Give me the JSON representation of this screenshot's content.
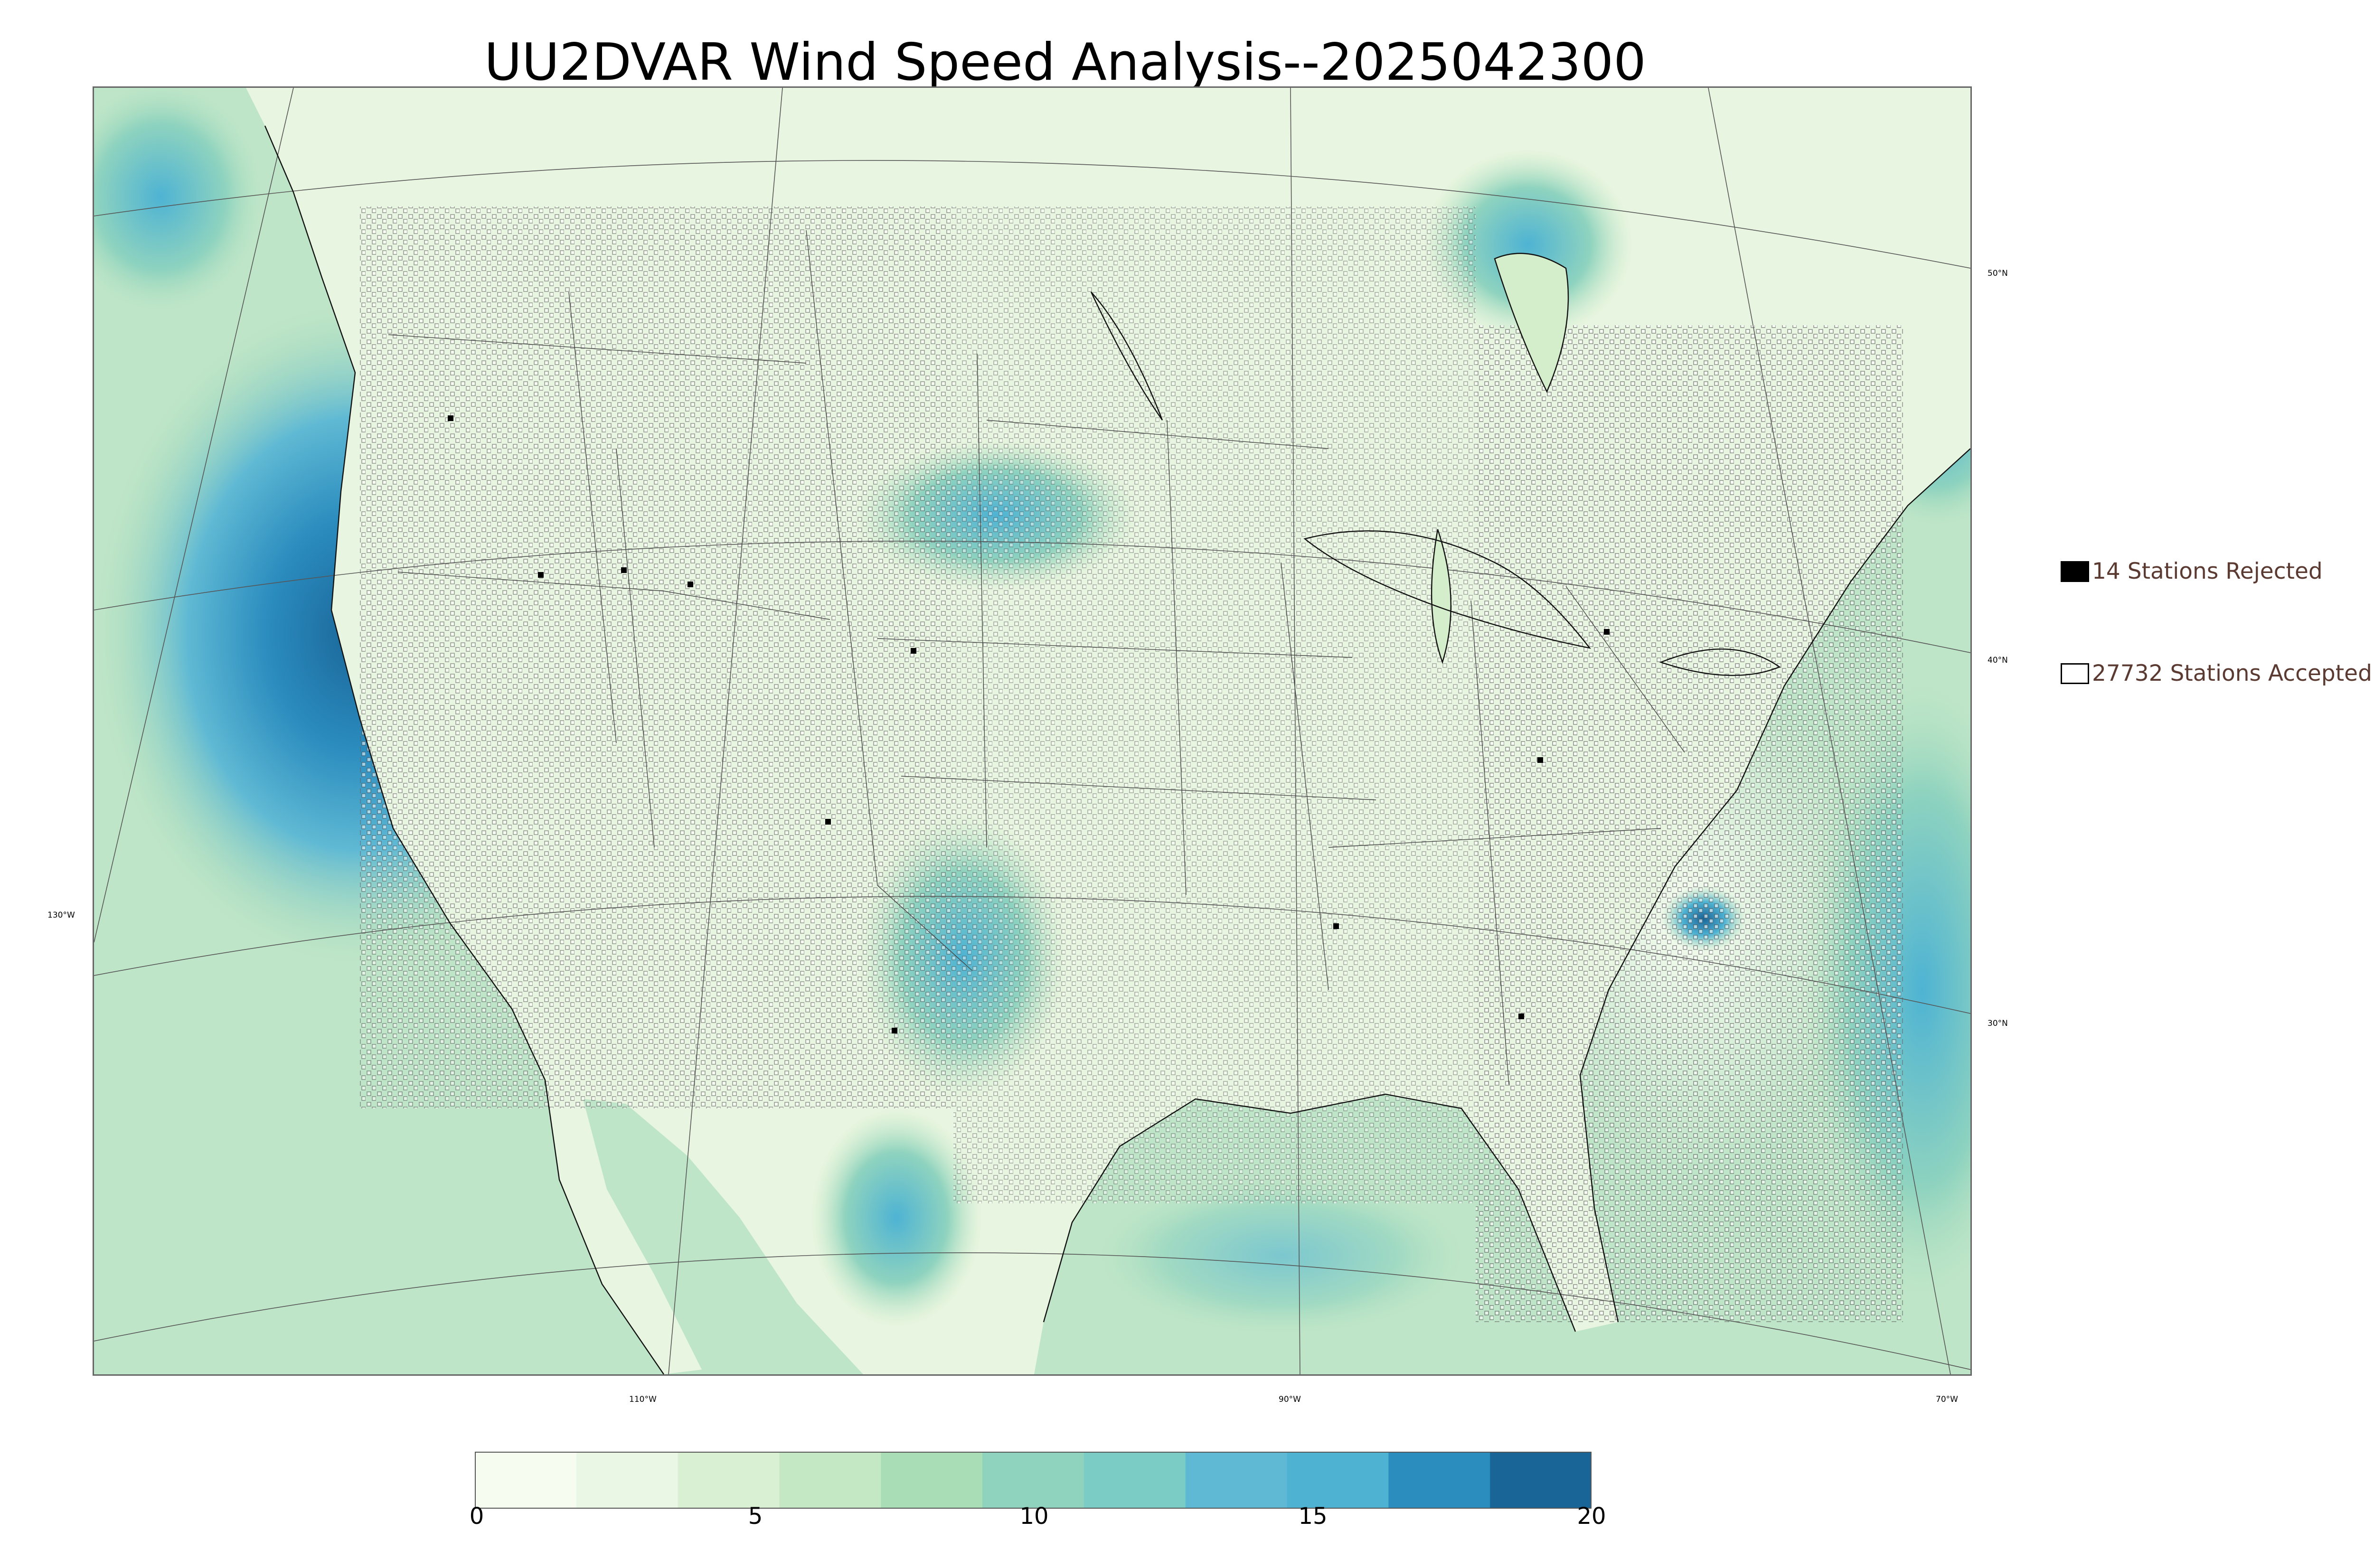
{
  "title": "UU2DVAR Wind Speed Analysis--2025042300",
  "map": {
    "lat_labels": [
      "50°N",
      "40°N",
      "30°N"
    ],
    "lon_labels": [
      "130°W",
      "110°W",
      "90°W",
      "70°W"
    ]
  },
  "legend": {
    "rejected": {
      "count_text": "14 Stations Rejected",
      "swatch_color": "#000000"
    },
    "accepted": {
      "count_text": "27732 Stations Accepted",
      "swatch_color": "#ffffff"
    }
  },
  "colorbar": {
    "ticks": [
      "0",
      "5",
      "10",
      "15",
      "20"
    ],
    "colors": [
      "#f7fcf0",
      "#eaf7e4",
      "#d9f0d3",
      "#c3e8c3",
      "#a8ddb5",
      "#8fd3bf",
      "#7bccc4",
      "#5fb9d4",
      "#4eb3d3",
      "#2b8cbe",
      "#1a6598"
    ]
  },
  "colors": {
    "land_base": "#e8f5e0",
    "ocean_base": "#bfe5c8",
    "high_wind": "#2b8cbe"
  }
}
